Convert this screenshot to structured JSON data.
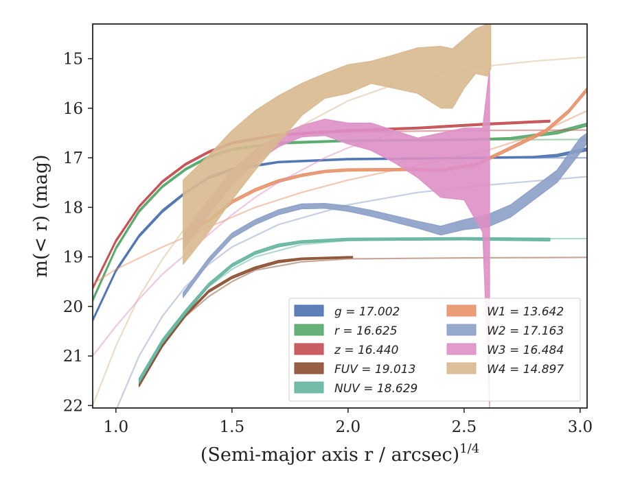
{
  "chart_data": {
    "type": "line",
    "title": "",
    "xlabel": "(Semi-major axis r / arcsec)",
    "xlabel_superscript": "1/4",
    "ylabel": "m(< r) (mag)",
    "xlim": [
      0.9,
      3.03
    ],
    "ylim": [
      22.05,
      14.3
    ],
    "y_inverted": true,
    "grid": false,
    "legend_position": "lower-right",
    "xticks": [
      "1.0",
      "1.5",
      "2.0",
      "2.5",
      "3.0"
    ],
    "xtick_values": [
      1.0,
      1.5,
      2.0,
      2.5,
      3.0
    ],
    "yticks": [
      "15",
      "16",
      "17",
      "18",
      "19",
      "20",
      "21",
      "22"
    ],
    "ytick_values": [
      15,
      16,
      17,
      18,
      19,
      20,
      21,
      22
    ],
    "series": [
      {
        "name": "g = 17.002",
        "label_var": "g",
        "label_val": "17.002",
        "color": "#4c72b0",
        "model": [
          [
            0.9,
            20.3
          ],
          [
            1.0,
            19.3
          ],
          [
            1.1,
            18.6
          ],
          [
            1.2,
            18.1
          ],
          [
            1.3,
            17.72
          ],
          [
            1.4,
            17.42
          ],
          [
            1.5,
            17.25
          ],
          [
            1.7,
            17.1
          ],
          [
            2.0,
            17.04
          ],
          [
            2.5,
            17.01
          ],
          [
            3.03,
            17.0
          ]
        ],
        "data_band": [
          [
            0.9,
            20.3,
            20.25
          ],
          [
            1.0,
            19.3,
            19.25
          ],
          [
            1.1,
            18.6,
            18.55
          ],
          [
            1.2,
            18.1,
            18.05
          ],
          [
            1.3,
            17.72,
            17.68
          ],
          [
            1.4,
            17.42,
            17.38
          ],
          [
            1.5,
            17.25,
            17.21
          ],
          [
            1.7,
            17.1,
            17.07
          ],
          [
            2.0,
            17.04,
            17.01
          ],
          [
            2.5,
            17.02,
            16.99
          ],
          [
            2.8,
            17.0,
            16.97
          ],
          [
            2.9,
            16.98,
            16.93
          ],
          [
            3.03,
            16.86,
            16.8
          ]
        ]
      },
      {
        "name": "r = 16.625",
        "label_var": "r",
        "label_val": "16.625",
        "color": "#55a868",
        "model": [
          [
            0.9,
            19.9
          ],
          [
            1.0,
            18.85
          ],
          [
            1.1,
            18.1
          ],
          [
            1.2,
            17.6
          ],
          [
            1.3,
            17.25
          ],
          [
            1.4,
            17.0
          ],
          [
            1.5,
            16.85
          ],
          [
            1.7,
            16.72
          ],
          [
            2.0,
            16.67
          ],
          [
            2.5,
            16.64
          ],
          [
            3.03,
            16.63
          ]
        ],
        "data_band": [
          [
            0.9,
            19.9,
            19.84
          ],
          [
            1.0,
            18.85,
            18.8
          ],
          [
            1.1,
            18.1,
            18.05
          ],
          [
            1.2,
            17.6,
            17.56
          ],
          [
            1.3,
            17.25,
            17.21
          ],
          [
            1.4,
            17.0,
            16.96
          ],
          [
            1.5,
            16.85,
            16.81
          ],
          [
            1.7,
            16.72,
            16.68
          ],
          [
            2.0,
            16.67,
            16.64
          ],
          [
            2.5,
            16.65,
            16.62
          ],
          [
            2.7,
            16.63,
            16.59
          ],
          [
            2.9,
            16.52,
            16.46
          ],
          [
            3.03,
            16.36,
            16.3
          ]
        ]
      },
      {
        "name": "z = 16.440",
        "label_var": "z",
        "label_val": "16.440",
        "color": "#c44e52",
        "model": [
          [
            0.9,
            19.65
          ],
          [
            1.0,
            18.7
          ],
          [
            1.1,
            18.0
          ],
          [
            1.2,
            17.5
          ],
          [
            1.3,
            17.15
          ],
          [
            1.4,
            16.9
          ],
          [
            1.5,
            16.72
          ],
          [
            1.7,
            16.56
          ],
          [
            2.0,
            16.48
          ],
          [
            2.5,
            16.45
          ],
          [
            3.03,
            16.44
          ]
        ],
        "data_band": [
          [
            0.9,
            19.65,
            19.6
          ],
          [
            1.0,
            18.7,
            18.65
          ],
          [
            1.1,
            18.0,
            17.96
          ],
          [
            1.2,
            17.5,
            17.46
          ],
          [
            1.3,
            17.15,
            17.11
          ],
          [
            1.4,
            16.9,
            16.86
          ],
          [
            1.5,
            16.72,
            16.68
          ],
          [
            1.7,
            16.55,
            16.52
          ],
          [
            2.0,
            16.47,
            16.43
          ],
          [
            2.3,
            16.42,
            16.38
          ],
          [
            2.6,
            16.34,
            16.3
          ],
          [
            2.87,
            16.28,
            16.24
          ]
        ]
      },
      {
        "name": "FUV = 19.013",
        "label_var": "FUV",
        "label_val": "19.013",
        "color": "#8c4f2f",
        "model": [
          [
            1.1,
            21.6
          ],
          [
            1.2,
            20.8
          ],
          [
            1.3,
            20.2
          ],
          [
            1.4,
            19.8
          ],
          [
            1.5,
            19.5
          ],
          [
            1.6,
            19.27
          ],
          [
            1.8,
            19.1
          ],
          [
            2.0,
            19.04
          ],
          [
            2.5,
            19.02
          ],
          [
            3.03,
            19.01
          ]
        ],
        "data_band": [
          [
            1.1,
            21.62,
            21.55
          ],
          [
            1.2,
            20.82,
            20.76
          ],
          [
            1.3,
            20.2,
            20.15
          ],
          [
            1.4,
            19.72,
            19.67
          ],
          [
            1.5,
            19.44,
            19.39
          ],
          [
            1.6,
            19.25,
            19.2
          ],
          [
            1.7,
            19.12,
            19.07
          ],
          [
            1.8,
            19.06,
            19.02
          ],
          [
            2.02,
            19.02,
            18.99
          ]
        ]
      },
      {
        "name": "NUV = 18.629",
        "label_var": "NUV",
        "label_val": "18.629",
        "color": "#64b5a0",
        "model": [
          [
            1.1,
            21.5
          ],
          [
            1.2,
            20.7
          ],
          [
            1.3,
            20.1
          ],
          [
            1.4,
            19.6
          ],
          [
            1.5,
            19.25
          ],
          [
            1.6,
            19.0
          ],
          [
            1.8,
            18.75
          ],
          [
            2.0,
            18.67
          ],
          [
            2.5,
            18.64
          ],
          [
            3.03,
            18.63
          ]
        ],
        "data_band": [
          [
            1.1,
            21.55,
            21.45
          ],
          [
            1.2,
            20.75,
            20.66
          ],
          [
            1.3,
            20.15,
            20.07
          ],
          [
            1.4,
            19.6,
            19.53
          ],
          [
            1.5,
            19.2,
            19.14
          ],
          [
            1.6,
            18.95,
            18.89
          ],
          [
            1.7,
            18.8,
            18.74
          ],
          [
            1.8,
            18.72,
            18.67
          ],
          [
            2.0,
            18.67,
            18.62
          ],
          [
            2.5,
            18.66,
            18.61
          ],
          [
            2.87,
            18.68,
            18.62
          ]
        ]
      },
      {
        "name": "W1 = 13.642",
        "label_var": "W1",
        "label_val": "13.642",
        "color": "#e8926a",
        "model": [
          [
            0.9,
            19.55
          ],
          [
            1.0,
            19.25
          ],
          [
            1.2,
            18.8
          ],
          [
            1.4,
            18.4
          ],
          [
            1.6,
            18.0
          ],
          [
            1.8,
            17.7
          ],
          [
            2.0,
            17.45
          ],
          [
            2.3,
            17.15
          ],
          [
            2.6,
            16.85
          ],
          [
            2.8,
            16.55
          ],
          [
            3.03,
            16.05
          ]
        ],
        "data_band": [
          [
            1.3,
            18.52,
            18.46
          ],
          [
            1.4,
            18.3,
            18.24
          ],
          [
            1.5,
            17.92,
            17.86
          ],
          [
            1.6,
            17.68,
            17.62
          ],
          [
            1.7,
            17.5,
            17.44
          ],
          [
            1.8,
            17.38,
            17.33
          ],
          [
            1.9,
            17.3,
            17.25
          ],
          [
            2.0,
            17.27,
            17.22
          ],
          [
            2.3,
            17.26,
            17.21
          ],
          [
            2.4,
            17.28,
            17.22
          ],
          [
            2.55,
            17.17,
            17.11
          ],
          [
            2.65,
            16.95,
            16.89
          ],
          [
            2.75,
            16.72,
            16.66
          ],
          [
            2.85,
            16.5,
            16.43
          ],
          [
            2.95,
            16.1,
            16.03
          ],
          [
            3.03,
            15.66,
            15.58
          ]
        ]
      },
      {
        "name": "W2 = 17.163",
        "label_var": "W2",
        "label_val": "17.163",
        "color": "#8c9fc8",
        "model": [
          [
            1.0,
            22.1
          ],
          [
            1.1,
            21.0
          ],
          [
            1.2,
            20.2
          ],
          [
            1.3,
            19.6
          ],
          [
            1.4,
            19.15
          ],
          [
            1.5,
            18.8
          ],
          [
            1.7,
            18.35
          ],
          [
            2.0,
            17.95
          ],
          [
            2.3,
            17.7
          ],
          [
            2.6,
            17.55
          ],
          [
            3.03,
            17.38
          ]
        ],
        "data_band": [
          [
            1.29,
            19.82,
            19.72
          ],
          [
            1.4,
            19.12,
            19.02
          ],
          [
            1.5,
            18.62,
            18.52
          ],
          [
            1.6,
            18.35,
            18.25
          ],
          [
            1.7,
            18.15,
            18.05
          ],
          [
            1.8,
            18.03,
            17.93
          ],
          [
            1.9,
            18.02,
            17.92
          ],
          [
            2.0,
            18.08,
            17.97
          ],
          [
            2.1,
            18.18,
            18.06
          ],
          [
            2.2,
            18.3,
            18.17
          ],
          [
            2.3,
            18.42,
            18.28
          ],
          [
            2.4,
            18.56,
            18.38
          ],
          [
            2.5,
            18.45,
            18.25
          ],
          [
            2.6,
            18.4,
            18.15
          ],
          [
            2.7,
            18.2,
            17.95
          ],
          [
            2.8,
            17.85,
            17.6
          ],
          [
            2.9,
            17.5,
            17.25
          ],
          [
            3.0,
            16.9,
            16.6
          ],
          [
            3.03,
            16.7,
            16.5
          ]
        ]
      },
      {
        "name": "W3 = 16.484",
        "label_var": "W3",
        "label_val": "16.484",
        "color": "#dd8fc6",
        "model": [
          [
            0.9,
            21.0
          ],
          [
            1.0,
            20.4
          ],
          [
            1.1,
            19.85
          ],
          [
            1.2,
            19.35
          ],
          [
            1.3,
            18.95
          ],
          [
            1.4,
            18.55
          ],
          [
            1.5,
            18.15
          ],
          [
            1.6,
            17.8
          ],
          [
            1.7,
            17.5
          ],
          [
            1.8,
            17.25
          ],
          [
            1.9,
            17.0
          ],
          [
            2.0,
            16.8
          ],
          [
            2.2,
            16.5
          ]
        ],
        "data_band": [
          [
            1.29,
            18.85,
            18.55
          ],
          [
            1.4,
            18.15,
            17.85
          ],
          [
            1.5,
            17.55,
            17.25
          ],
          [
            1.6,
            17.1,
            16.85
          ],
          [
            1.7,
            16.78,
            16.55
          ],
          [
            1.8,
            16.58,
            16.35
          ],
          [
            1.9,
            16.55,
            16.22
          ],
          [
            2.0,
            16.72,
            16.3
          ],
          [
            2.1,
            16.85,
            16.3
          ],
          [
            2.2,
            17.1,
            16.45
          ],
          [
            2.3,
            17.4,
            16.6
          ],
          [
            2.4,
            17.8,
            16.5
          ],
          [
            2.5,
            17.85,
            16.4
          ],
          [
            2.58,
            18.5,
            16.4
          ],
          [
            2.61,
            22.05,
            15.2
          ]
        ]
      },
      {
        "name": "W4 = 14.897",
        "label_var": "W4",
        "label_val": "14.897",
        "color": "#d8b98f",
        "model": [
          [
            0.9,
            22.0
          ],
          [
            1.0,
            20.8
          ],
          [
            1.1,
            19.8
          ],
          [
            1.2,
            19.05
          ],
          [
            1.3,
            18.4
          ],
          [
            1.4,
            17.85
          ],
          [
            1.5,
            17.35
          ],
          [
            1.6,
            16.95
          ],
          [
            1.8,
            16.35
          ],
          [
            2.0,
            15.85
          ],
          [
            2.2,
            15.52
          ],
          [
            2.4,
            15.3
          ],
          [
            2.6,
            15.15
          ],
          [
            2.8,
            15.05
          ],
          [
            3.03,
            14.97
          ]
        ],
        "data_band": [
          [
            1.29,
            19.15,
            17.45
          ],
          [
            1.4,
            18.5,
            16.95
          ],
          [
            1.5,
            17.85,
            16.45
          ],
          [
            1.6,
            17.25,
            16.05
          ],
          [
            1.7,
            16.7,
            15.75
          ],
          [
            1.8,
            16.15,
            15.5
          ],
          [
            1.9,
            15.8,
            15.3
          ],
          [
            2.0,
            15.7,
            15.12
          ],
          [
            2.1,
            15.5,
            15.05
          ],
          [
            2.2,
            15.6,
            14.92
          ],
          [
            2.3,
            15.7,
            14.78
          ],
          [
            2.4,
            16.0,
            14.75
          ],
          [
            2.45,
            16.0,
            14.8
          ],
          [
            2.5,
            15.6,
            14.6
          ],
          [
            2.55,
            15.3,
            14.4
          ],
          [
            2.6,
            15.35,
            14.3
          ],
          [
            2.615,
            15.2,
            14.3
          ]
        ]
      }
    ]
  }
}
